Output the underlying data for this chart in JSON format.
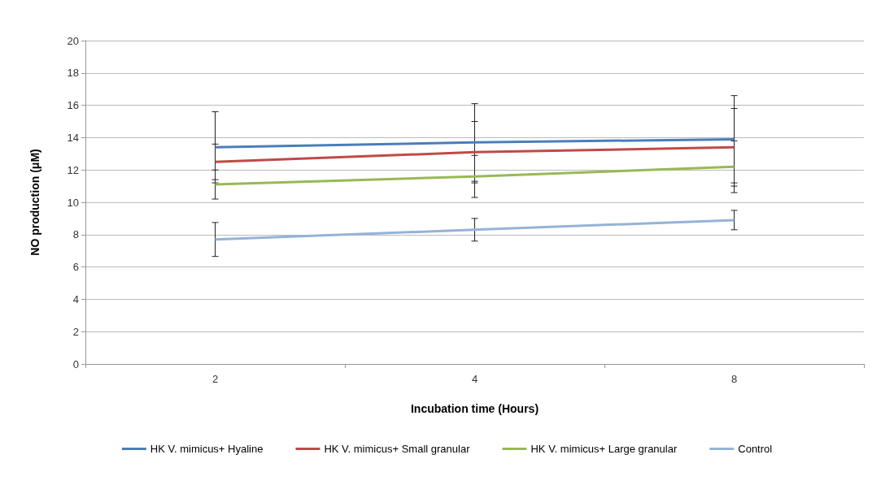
{
  "chart_data": {
    "type": "line",
    "xlabel": "Incubation time (Hours)",
    "ylabel": "NO production (μM)",
    "categories": [
      "2",
      "4",
      "8"
    ],
    "ylim": [
      0,
      20
    ],
    "yticks": [
      0,
      2,
      4,
      6,
      8,
      10,
      12,
      14,
      16,
      18,
      20
    ],
    "grid": "y",
    "legend": "bottom",
    "marker": "none",
    "line_style": "solid",
    "series": [
      {
        "name": "HK V. mimicus+ Hyaline",
        "color": "#4a7ebb",
        "values": [
          13.4,
          13.7,
          13.9
        ],
        "errors": [
          2.2,
          2.4,
          2.7
        ]
      },
      {
        "name": "HK V. mimicus+ Small granular",
        "color": "#be4b48",
        "values": [
          12.5,
          13.1,
          13.4
        ],
        "errors": [
          1.1,
          1.9,
          2.4
        ]
      },
      {
        "name": "HK V. mimicus+ Large granular",
        "color": "#98b954",
        "values": [
          11.1,
          11.6,
          12.2
        ],
        "errors": [
          0.9,
          1.3,
          1.6
        ]
      },
      {
        "name": "Control",
        "color": "#95b3d7",
        "values": [
          7.7,
          8.3,
          8.9
        ],
        "errors": [
          1.05,
          0.7,
          0.6
        ]
      }
    ]
  }
}
